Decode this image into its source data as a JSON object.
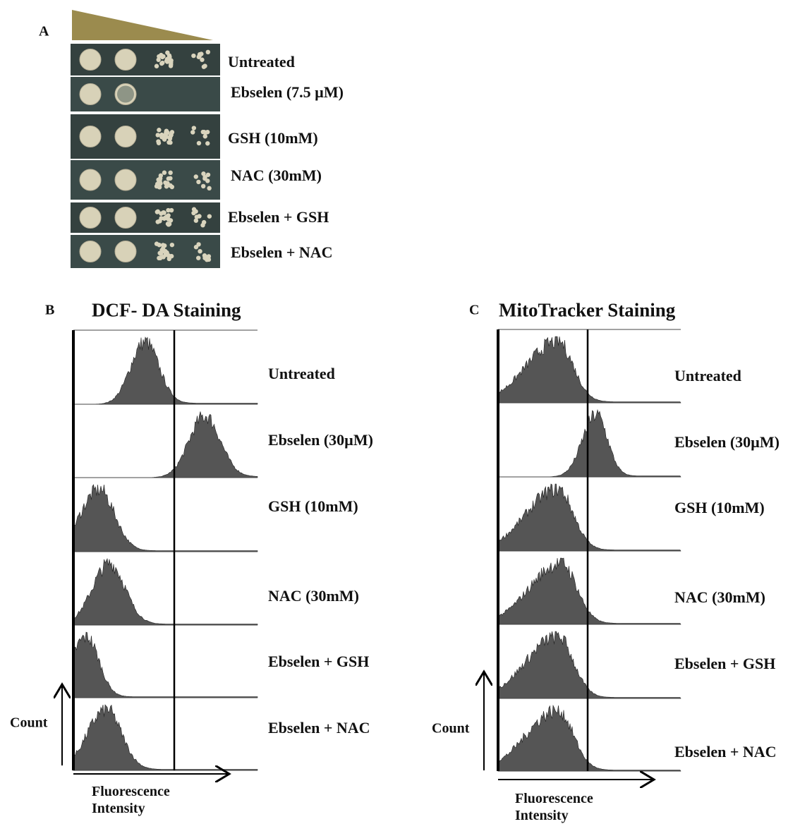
{
  "panel_a": {
    "label": "A",
    "rows": [
      "Untreated",
      "Ebselen (7.5 µM)",
      "GSH (10mM)",
      "NAC (30mM)",
      "Ebselen + GSH",
      "Ebselen + NAC"
    ]
  },
  "panel_b": {
    "label": "B",
    "title": "DCF- DA Staining",
    "rows": [
      "Untreated",
      "Ebselen (30µM)",
      "GSH (10mM)",
      "NAC (30mM)",
      "Ebselen + GSH",
      "Ebselen + NAC"
    ],
    "y_axis": "Count",
    "x_axis": "Fluorescence Intensity"
  },
  "panel_c": {
    "label": "C",
    "title": "MitoTracker Staining",
    "rows": [
      "Untreated",
      "Ebselen (30µM)",
      "GSH (10mM)",
      "NAC (30mM)",
      "Ebselen + GSH",
      "Ebselen + NAC"
    ],
    "y_axis": "Count",
    "x_axis": "Fluorescence Intensity"
  }
}
